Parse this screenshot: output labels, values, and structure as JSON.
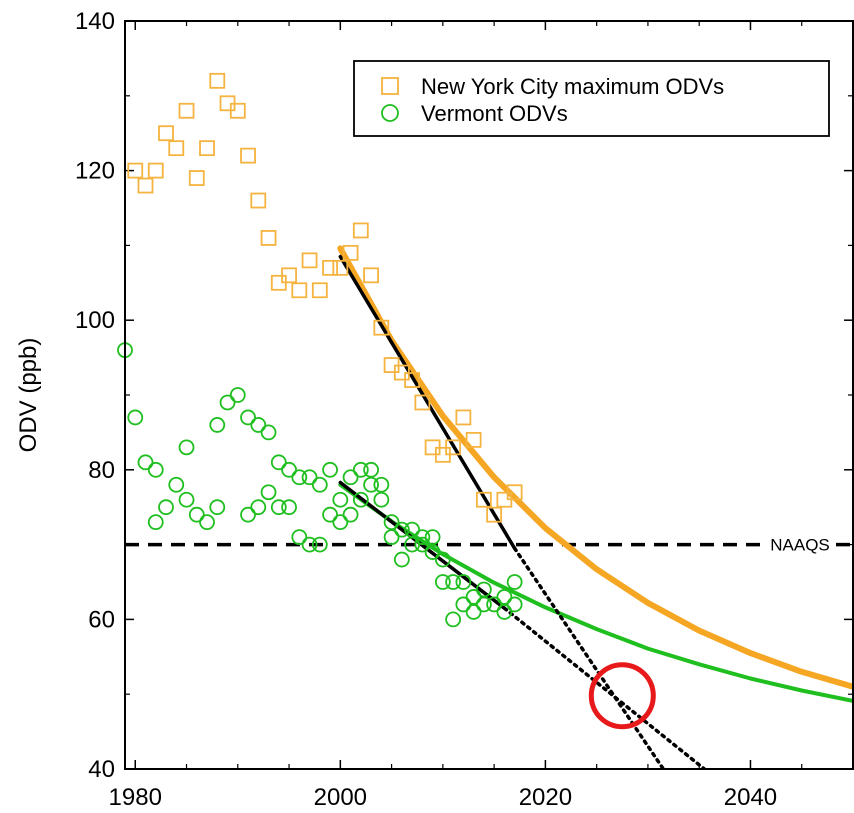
{
  "chart_data": {
    "type": "scatter",
    "xlim": [
      1979,
      2050
    ],
    "ylim": [
      40,
      140
    ],
    "xticks": [
      1980,
      2000,
      2020,
      2040
    ],
    "yticks": [
      40,
      60,
      80,
      100,
      120,
      140
    ],
    "xlabel": "",
    "ylabel": "ODV (ppb)",
    "legend": {
      "placement": "top-right"
    },
    "series": [
      {
        "name": "New York City maximum ODVs",
        "marker": "square",
        "color": "#F5B33F",
        "points": [
          [
            1980,
            120
          ],
          [
            1981,
            118
          ],
          [
            1982,
            120
          ],
          [
            1983,
            125
          ],
          [
            1984,
            123
          ],
          [
            1985,
            128
          ],
          [
            1986,
            119
          ],
          [
            1987,
            123
          ],
          [
            1988,
            132
          ],
          [
            1989,
            129
          ],
          [
            1990,
            128
          ],
          [
            1991,
            122
          ],
          [
            1992,
            116
          ],
          [
            1993,
            111
          ],
          [
            1994,
            105
          ],
          [
            1995,
            106
          ],
          [
            1996,
            104
          ],
          [
            1997,
            108
          ],
          [
            1998,
            104
          ],
          [
            1999,
            107
          ],
          [
            2000,
            107
          ],
          [
            2001,
            109
          ],
          [
            2002,
            112
          ],
          [
            2003,
            106
          ],
          [
            2004,
            99
          ],
          [
            2005,
            94
          ],
          [
            2006,
            93
          ],
          [
            2007,
            92
          ],
          [
            2008,
            89
          ],
          [
            2009,
            83
          ],
          [
            2010,
            82
          ],
          [
            2011,
            83
          ],
          [
            2012,
            87
          ],
          [
            2013,
            84
          ],
          [
            2014,
            76
          ],
          [
            2015,
            74
          ],
          [
            2016,
            76
          ],
          [
            2017,
            77
          ]
        ]
      },
      {
        "name": "Vermont ODVs",
        "marker": "circle",
        "color": "#1FBF1F",
        "points": [
          [
            1979,
            96
          ],
          [
            1980,
            87
          ],
          [
            1981,
            81
          ],
          [
            1982,
            80
          ],
          [
            1982,
            73
          ],
          [
            1983,
            75
          ],
          [
            1984,
            78
          ],
          [
            1985,
            76
          ],
          [
            1985,
            83
          ],
          [
            1986,
            74
          ],
          [
            1987,
            73
          ],
          [
            1988,
            75
          ],
          [
            1988,
            86
          ],
          [
            1989,
            89
          ],
          [
            1990,
            90
          ],
          [
            1991,
            87
          ],
          [
            1991,
            74
          ],
          [
            1992,
            86
          ],
          [
            1992,
            75
          ],
          [
            1993,
            85
          ],
          [
            1993,
            77
          ],
          [
            1994,
            81
          ],
          [
            1994,
            75
          ],
          [
            1995,
            80
          ],
          [
            1995,
            75
          ],
          [
            1996,
            79
          ],
          [
            1996,
            71
          ],
          [
            1997,
            79
          ],
          [
            1997,
            70
          ],
          [
            1998,
            78
          ],
          [
            1998,
            70
          ],
          [
            1999,
            80
          ],
          [
            1999,
            74
          ],
          [
            2000,
            76
          ],
          [
            2000,
            73
          ],
          [
            2001,
            79
          ],
          [
            2001,
            74
          ],
          [
            2002,
            80
          ],
          [
            2002,
            76
          ],
          [
            2003,
            80
          ],
          [
            2003,
            78
          ],
          [
            2004,
            78
          ],
          [
            2004,
            76
          ],
          [
            2005,
            73
          ],
          [
            2005,
            71
          ],
          [
            2006,
            72
          ],
          [
            2006,
            68
          ],
          [
            2007,
            72
          ],
          [
            2007,
            70
          ],
          [
            2008,
            71
          ],
          [
            2008,
            70
          ],
          [
            2009,
            71
          ],
          [
            2009,
            69
          ],
          [
            2010,
            68
          ],
          [
            2010,
            65
          ],
          [
            2011,
            65
          ],
          [
            2011,
            60
          ],
          [
            2012,
            65
          ],
          [
            2012,
            62
          ],
          [
            2013,
            63
          ],
          [
            2013,
            61
          ],
          [
            2014,
            64
          ],
          [
            2014,
            62
          ],
          [
            2015,
            62
          ],
          [
            2016,
            63
          ],
          [
            2016,
            61
          ],
          [
            2017,
            65
          ],
          [
            2017,
            62
          ]
        ]
      }
    ],
    "fit_curves": [
      {
        "color": "#F5A623",
        "points": [
          [
            2000,
            109.6
          ],
          [
            2005,
            97.3
          ],
          [
            2010,
            87.2
          ],
          [
            2015,
            79.0
          ],
          [
            2020,
            72.2
          ],
          [
            2025,
            66.7
          ],
          [
            2030,
            62.2
          ],
          [
            2035,
            58.5
          ],
          [
            2040,
            55.5
          ],
          [
            2045,
            53.0
          ],
          [
            2050,
            51.0
          ]
        ]
      },
      {
        "color": "#1FBF1F",
        "points": [
          [
            2000,
            78.0
          ],
          [
            2005,
            73.1
          ],
          [
            2010,
            68.7
          ],
          [
            2015,
            64.9
          ],
          [
            2020,
            61.6
          ],
          [
            2025,
            58.7
          ],
          [
            2030,
            56.1
          ],
          [
            2035,
            54.0
          ],
          [
            2040,
            52.1
          ],
          [
            2045,
            50.5
          ],
          [
            2050,
            49.1
          ]
        ]
      }
    ],
    "linear_fits": [
      {
        "solid": [
          [
            2000,
            108.5
          ],
          [
            2017,
            69.5
          ]
        ],
        "dotted": [
          [
            2017,
            69.5
          ],
          [
            2031.5,
            40
          ]
        ]
      },
      {
        "solid": [
          [
            2000,
            78.3
          ],
          [
            2016,
            61.5
          ]
        ],
        "dotted": [
          [
            2016,
            61.5
          ],
          [
            2035.5,
            40
          ]
        ]
      }
    ],
    "reference_line": {
      "y": 70,
      "label": "NAAQS"
    },
    "highlight": {
      "x": 2027.5,
      "y": 49.8,
      "color": "#E8191B"
    }
  }
}
